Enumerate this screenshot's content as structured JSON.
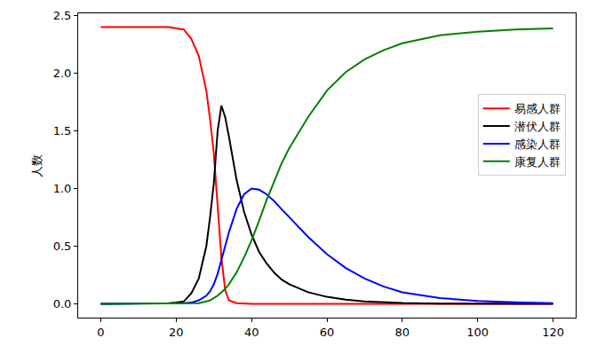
{
  "chart_data": {
    "type": "line",
    "y_label": "人数",
    "x": [
      0,
      5,
      10,
      15,
      18,
      20,
      22,
      24,
      26,
      28,
      29,
      30,
      31,
      32,
      33,
      34,
      36,
      38,
      40,
      42,
      44,
      46,
      48,
      50,
      55,
      60,
      65,
      70,
      75,
      80,
      90,
      100,
      110,
      120
    ],
    "series": [
      {
        "name": "易感人群",
        "color": "#ff0000",
        "values": [
          2.4,
          2.4,
          2.4,
          2.4,
          2.4,
          2.39,
          2.38,
          2.3,
          2.15,
          1.85,
          1.6,
          1.3,
          0.85,
          0.4,
          0.12,
          0.03,
          0.005,
          0,
          0,
          0,
          0,
          0,
          0,
          0,
          0,
          0,
          0,
          0,
          0,
          0,
          0,
          0,
          0,
          0
        ]
      },
      {
        "name": "潜伏人群",
        "color": "#000000",
        "values": [
          0,
          0,
          0,
          0,
          0.005,
          0.01,
          0.02,
          0.09,
          0.22,
          0.5,
          0.75,
          1.05,
          1.5,
          1.72,
          1.62,
          1.45,
          1.08,
          0.8,
          0.6,
          0.45,
          0.35,
          0.27,
          0.21,
          0.17,
          0.1,
          0.06,
          0.035,
          0.02,
          0.012,
          0.007,
          0.002,
          0.001,
          0,
          0
        ]
      },
      {
        "name": "感染人群",
        "color": "#0000ff",
        "values": [
          0,
          0,
          0,
          0,
          0,
          0,
          0.005,
          0.01,
          0.03,
          0.07,
          0.11,
          0.17,
          0.26,
          0.38,
          0.5,
          0.62,
          0.82,
          0.95,
          1.0,
          0.99,
          0.95,
          0.89,
          0.82,
          0.75,
          0.58,
          0.43,
          0.31,
          0.22,
          0.15,
          0.1,
          0.05,
          0.025,
          0.012,
          0.006
        ]
      },
      {
        "name": "康复人群",
        "color": "#008000",
        "values": [
          0,
          0,
          0,
          0,
          0,
          0,
          0,
          0,
          0.005,
          0.02,
          0.03,
          0.05,
          0.07,
          0.1,
          0.13,
          0.17,
          0.27,
          0.4,
          0.55,
          0.72,
          0.9,
          1.06,
          1.22,
          1.35,
          1.62,
          1.85,
          2.01,
          2.12,
          2.2,
          2.26,
          2.33,
          2.36,
          2.38,
          2.39
        ]
      }
    ],
    "xlim": [
      -6,
      126
    ],
    "xticks": [
      0,
      20,
      40,
      60,
      80,
      100,
      120
    ],
    "ylim": [
      -0.12,
      2.52
    ],
    "yticks": [
      {
        "value": 0,
        "label": "0.0"
      },
      {
        "value": 0.5,
        "label": "0.5"
      },
      {
        "value": 1,
        "label": "1.0"
      },
      {
        "value": 1.5,
        "label": "1.5"
      },
      {
        "value": 2,
        "label": "2.0"
      },
      {
        "value": 2.5,
        "label": "2.5"
      }
    ],
    "grid": false,
    "legend": "right"
  }
}
